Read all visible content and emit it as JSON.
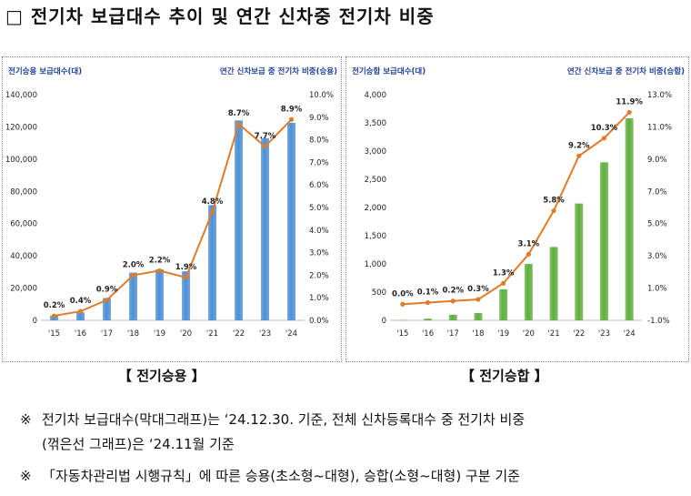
{
  "title": "□ 전기차 보급대수 추이 및 연간 신차중 전기차 비중",
  "captions": {
    "left": "【 전기승용 】",
    "right": "【 전기승합 】"
  },
  "notes": {
    "mark": "※",
    "note1_line1": "전기차 보급대수(막대그래프)는 ‘24.12.30. 기준, 전체 신차등록대수 중 전기차 비중",
    "note1_line2": "(꺾은선 그래프)은 ‘24.11월 기준",
    "note2": "「자동차관리법 시행규칙」에 따른 승용(초소형~대형), 승합(소형~대형) 구분 기준"
  },
  "chart_data": [
    {
      "type": "bar",
      "id": "passenger",
      "title": "전기승용",
      "ylabel": "전기승용 보급대수(대)",
      "y2label": "연간 신차보급 중 전기차 비중(승용)",
      "categories": [
        "'15",
        "'16",
        "'17",
        "'18",
        "'19",
        "'20",
        "'21",
        "'22",
        "'23",
        "'24"
      ],
      "ylim": [
        0,
        140000
      ],
      "yticks": [
        0,
        20000,
        40000,
        60000,
        80000,
        100000,
        120000,
        140000
      ],
      "ytick_labels": [
        "0",
        "20,000",
        "40,000",
        "60,000",
        "80,000",
        "100,000",
        "120,000",
        "140,000"
      ],
      "y2lim": [
        0,
        10
      ],
      "y2ticks": [
        0,
        1,
        2,
        3,
        4,
        5,
        6,
        7,
        8,
        9,
        10
      ],
      "y2tick_labels": [
        "0.0%",
        "1.0%",
        "2.0%",
        "3.0%",
        "4.0%",
        "5.0%",
        "6.0%",
        "7.0%",
        "8.0%",
        "9.0%",
        "10.0%"
      ],
      "series": [
        {
          "name": "보급대수",
          "kind": "bar",
          "axis": "left",
          "color": "#4a8fd6",
          "values": [
            2900,
            5000,
            13800,
            29600,
            31600,
            30400,
            71500,
            124000,
            113000,
            122500
          ]
        },
        {
          "name": "비중",
          "kind": "line",
          "axis": "right",
          "color": "#e07b2a",
          "values": [
            0.2,
            0.4,
            0.9,
            2.0,
            2.2,
            1.9,
            4.8,
            8.7,
            7.7,
            8.9
          ],
          "labels": [
            "0.2%",
            "0.4%",
            "0.9%",
            "2.0%",
            "2.2%",
            "1.9%",
            "4.8%",
            "8.7%",
            "7.7%",
            "8.9%"
          ]
        }
      ]
    },
    {
      "type": "bar",
      "id": "bus",
      "title": "전기승합",
      "ylabel": "전기승합 보급대수(대)",
      "y2label": "연간 신차보급 중 전기차 비중(승합)",
      "categories": [
        "'15",
        "'16",
        "'17",
        "'18",
        "'19",
        "'20",
        "'21",
        "'22",
        "'23",
        "'24"
      ],
      "ylim": [
        0,
        4000
      ],
      "yticks": [
        0,
        500,
        1000,
        1500,
        2000,
        2500,
        3000,
        3500,
        4000
      ],
      "ytick_labels": [
        "0",
        "500",
        "1,000",
        "1,500",
        "2,000",
        "2,500",
        "3,000",
        "3,500",
        "4,000"
      ],
      "y2lim": [
        -1,
        13
      ],
      "y2ticks": [
        -1,
        1,
        3,
        5,
        7,
        9,
        11,
        13
      ],
      "y2tick_labels": [
        "-1.0%",
        "1.0%",
        "3.0%",
        "5.0%",
        "7.0%",
        "9.0%",
        "11.0%",
        "13.0%"
      ],
      "series": [
        {
          "name": "보급대수",
          "kind": "bar",
          "axis": "left",
          "color": "#5fae3c",
          "values": [
            5,
            30,
            100,
            130,
            550,
            1000,
            1300,
            2070,
            2800,
            3580
          ]
        },
        {
          "name": "비중",
          "kind": "line",
          "axis": "right",
          "color": "#e07b2a",
          "values": [
            0.0,
            0.1,
            0.2,
            0.3,
            1.3,
            3.1,
            5.8,
            9.2,
            10.3,
            11.9
          ],
          "labels": [
            "0.0%",
            "0.1%",
            "0.2%",
            "0.3%",
            "1.3%",
            "3.1%",
            "5.8%",
            "9.2%",
            "10.3%",
            "11.9%"
          ]
        }
      ]
    }
  ]
}
